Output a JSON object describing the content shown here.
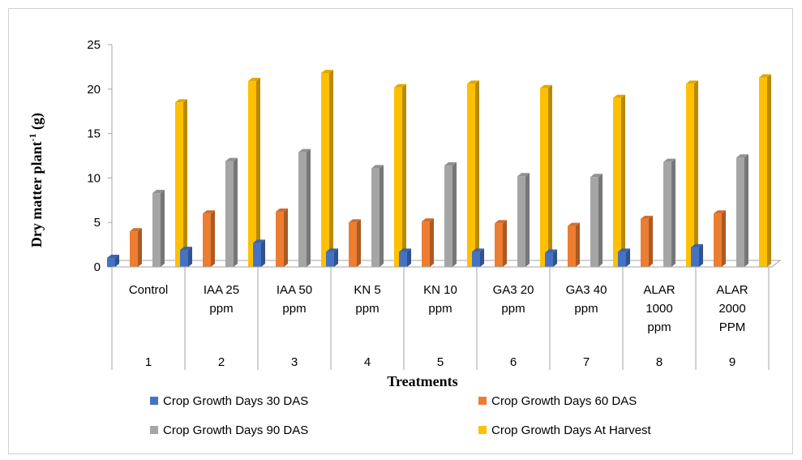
{
  "chart_data": {
    "type": "bar",
    "title": "",
    "xlabel": "Treatments",
    "ylabel_main": "Dry matter plant",
    "ylabel_sup": "-1",
    "ylabel_unit": " (g)",
    "ylim": [
      0,
      25
    ],
    "yticks": [
      0,
      5,
      10,
      15,
      20,
      25
    ],
    "categories": [
      {
        "label_lines": [
          "Control"
        ],
        "index": "1"
      },
      {
        "label_lines": [
          "IAA 25",
          "ppm"
        ],
        "index": "2"
      },
      {
        "label_lines": [
          "IAA 50",
          "ppm"
        ],
        "index": "3"
      },
      {
        "label_lines": [
          "KN 5",
          "ppm"
        ],
        "index": "4"
      },
      {
        "label_lines": [
          "KN 10",
          "ppm"
        ],
        "index": "5"
      },
      {
        "label_lines": [
          "GA3 20",
          "ppm"
        ],
        "index": "6"
      },
      {
        "label_lines": [
          "GA3 40",
          "ppm"
        ],
        "index": "7"
      },
      {
        "label_lines": [
          "ALAR",
          "1000",
          "ppm"
        ],
        "index": "8"
      },
      {
        "label_lines": [
          "ALAR",
          "2000",
          "PPM"
        ],
        "index": "9"
      }
    ],
    "series": [
      {
        "name": "Crop Growth Days 30 DAS",
        "color": "#4472C4",
        "values": [
          1.0,
          1.9,
          2.7,
          1.7,
          1.7,
          1.7,
          1.6,
          1.7,
          2.2
        ]
      },
      {
        "name": "Crop Growth Days 60 DAS",
        "color": "#ED7D31",
        "values": [
          4.0,
          6.0,
          6.2,
          5.0,
          5.1,
          4.9,
          4.6,
          5.4,
          6.0
        ]
      },
      {
        "name": "Crop Growth Days 90 DAS",
        "color": "#A5A5A5",
        "values": [
          8.3,
          11.9,
          12.9,
          11.1,
          11.4,
          10.2,
          10.1,
          11.8,
          12.3
        ]
      },
      {
        "name": "Crop Growth Days At Harvest",
        "color": "#FFC000",
        "values": [
          18.5,
          20.9,
          21.8,
          20.2,
          20.6,
          20.1,
          19.0,
          20.6,
          21.3
        ]
      }
    ],
    "legend_position": "bottom",
    "grid": false
  }
}
